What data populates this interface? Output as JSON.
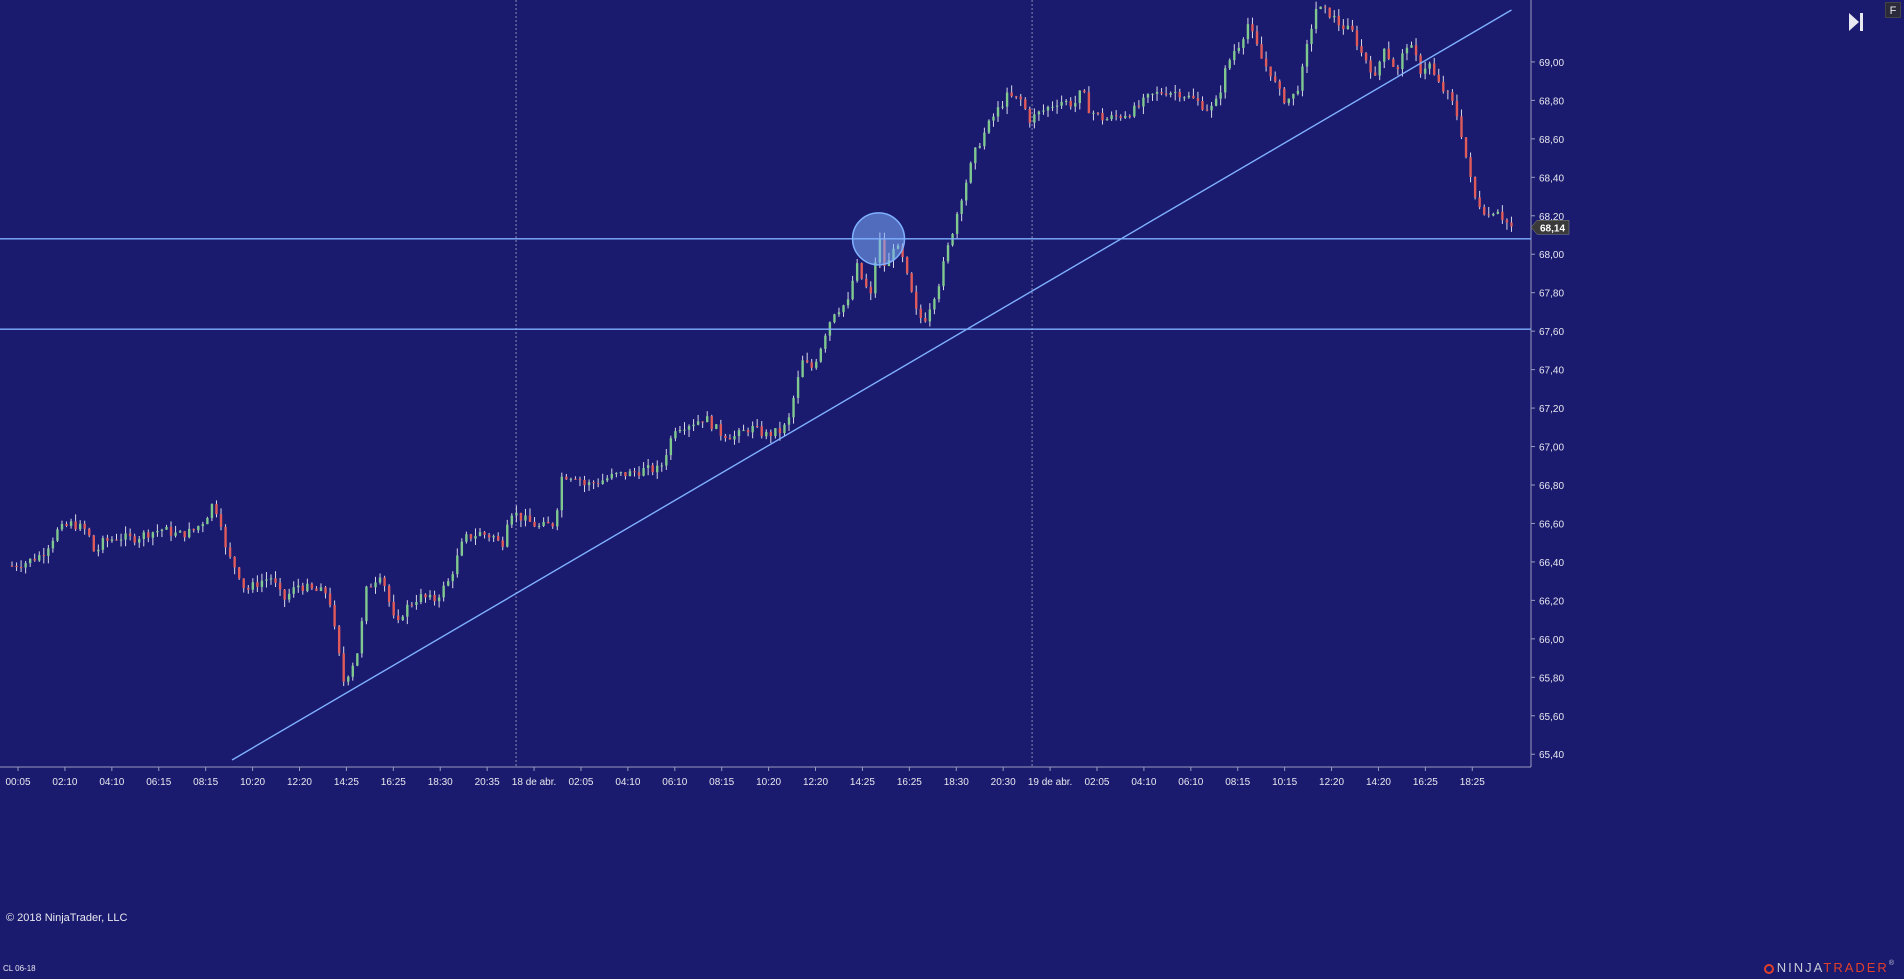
{
  "chart_data": {
    "type": "candlestick",
    "instrument": "CL 06-18",
    "x_tick_labels": [
      "00:05",
      "02:10",
      "04:10",
      "06:15",
      "08:15",
      "10:20",
      "12:20",
      "14:25",
      "16:25",
      "18:30",
      "20:35",
      "18 de abr.",
      "02:05",
      "04:10",
      "06:10",
      "08:15",
      "10:20",
      "12:20",
      "14:25",
      "16:25",
      "18:30",
      "20:30",
      "19 de abr.",
      "02:05",
      "04:10",
      "06:10",
      "08:15",
      "10:15",
      "12:20",
      "14:20",
      "16:25",
      "18:25"
    ],
    "y_tick_labels": [
      "69,00",
      "68,80",
      "68,60",
      "68,40",
      "68,20",
      "68,00",
      "67,80",
      "67,60",
      "67,40",
      "67,20",
      "67,00",
      "66,80",
      "66,60",
      "66,40",
      "66,20",
      "66,00",
      "65,80",
      "65,60",
      "65,40"
    ],
    "y_range": [
      65.37,
      69.27
    ],
    "last_price": 68.14,
    "last_price_label": "68,14",
    "horizontal_lines": [
      68.08,
      67.61
    ],
    "trend_line": {
      "start": {
        "x_index": 0.146,
        "y": 65.37
      },
      "end": {
        "x_index": 0.995,
        "y": 69.27
      }
    },
    "highlight_circle": {
      "x_index": 0.575,
      "y": 68.08
    },
    "session_separators": [
      "18 de abr.",
      "19 de abr."
    ],
    "price_path": [
      [
        0.0,
        66.38
      ],
      [
        0.01,
        66.4
      ],
      [
        0.02,
        66.44
      ],
      [
        0.03,
        66.56
      ],
      [
        0.04,
        66.6
      ],
      [
        0.05,
        66.56
      ],
      [
        0.055,
        66.44
      ],
      [
        0.06,
        66.5
      ],
      [
        0.07,
        66.53
      ],
      [
        0.08,
        66.52
      ],
      [
        0.09,
        66.55
      ],
      [
        0.1,
        66.57
      ],
      [
        0.11,
        66.54
      ],
      [
        0.12,
        66.56
      ],
      [
        0.128,
        66.62
      ],
      [
        0.133,
        66.7
      ],
      [
        0.138,
        66.64
      ],
      [
        0.142,
        66.45
      ],
      [
        0.15,
        66.35
      ],
      [
        0.155,
        66.25
      ],
      [
        0.165,
        66.3
      ],
      [
        0.172,
        66.32
      ],
      [
        0.18,
        66.2
      ],
      [
        0.19,
        66.28
      ],
      [
        0.2,
        66.25
      ],
      [
        0.21,
        66.24
      ],
      [
        0.215,
        66.0
      ],
      [
        0.22,
        65.78
      ],
      [
        0.225,
        65.85
      ],
      [
        0.23,
        65.95
      ],
      [
        0.235,
        66.25
      ],
      [
        0.245,
        66.35
      ],
      [
        0.25,
        66.2
      ],
      [
        0.255,
        66.05
      ],
      [
        0.26,
        66.15
      ],
      [
        0.27,
        66.22
      ],
      [
        0.28,
        66.2
      ],
      [
        0.29,
        66.3
      ],
      [
        0.3,
        66.52
      ],
      [
        0.31,
        66.55
      ],
      [
        0.32,
        66.53
      ],
      [
        0.325,
        66.48
      ],
      [
        0.33,
        66.67
      ],
      [
        0.34,
        66.62
      ],
      [
        0.35,
        66.58
      ],
      [
        0.36,
        66.6
      ],
      [
        0.365,
        66.85
      ],
      [
        0.375,
        66.85
      ],
      [
        0.38,
        66.8
      ],
      [
        0.39,
        66.82
      ],
      [
        0.4,
        66.85
      ],
      [
        0.41,
        66.86
      ],
      [
        0.42,
        66.88
      ],
      [
        0.43,
        66.88
      ],
      [
        0.44,
        67.1
      ],
      [
        0.45,
        67.12
      ],
      [
        0.46,
        67.15
      ],
      [
        0.47,
        67.07
      ],
      [
        0.48,
        67.05
      ],
      [
        0.49,
        67.1
      ],
      [
        0.5,
        67.06
      ],
      [
        0.51,
        67.08
      ],
      [
        0.515,
        67.12
      ],
      [
        0.52,
        67.3
      ],
      [
        0.525,
        67.45
      ],
      [
        0.53,
        67.4
      ],
      [
        0.535,
        67.48
      ],
      [
        0.54,
        67.6
      ],
      [
        0.545,
        67.7
      ],
      [
        0.555,
        67.75
      ],
      [
        0.56,
        67.95
      ],
      [
        0.565,
        67.85
      ],
      [
        0.57,
        67.78
      ],
      [
        0.575,
        68.1
      ],
      [
        0.58,
        67.9
      ],
      [
        0.585,
        68.05
      ],
      [
        0.59,
        68.0
      ],
      [
        0.595,
        67.85
      ],
      [
        0.6,
        67.7
      ],
      [
        0.605,
        67.65
      ],
      [
        0.61,
        67.75
      ],
      [
        0.615,
        67.85
      ],
      [
        0.62,
        68.0
      ],
      [
        0.63,
        68.3
      ],
      [
        0.64,
        68.55
      ],
      [
        0.65,
        68.7
      ],
      [
        0.66,
        68.82
      ],
      [
        0.67,
        68.8
      ],
      [
        0.675,
        68.7
      ],
      [
        0.685,
        68.75
      ],
      [
        0.695,
        68.8
      ],
      [
        0.705,
        68.78
      ],
      [
        0.71,
        68.85
      ],
      [
        0.715,
        68.75
      ],
      [
        0.725,
        68.7
      ],
      [
        0.735,
        68.72
      ],
      [
        0.745,
        68.75
      ],
      [
        0.755,
        68.82
      ],
      [
        0.765,
        68.85
      ],
      [
        0.775,
        68.84
      ],
      [
        0.785,
        68.8
      ],
      [
        0.795,
        68.75
      ],
      [
        0.8,
        68.8
      ],
      [
        0.805,
        68.95
      ],
      [
        0.81,
        69.05
      ],
      [
        0.815,
        69.1
      ],
      [
        0.82,
        69.2
      ],
      [
        0.825,
        69.1
      ],
      [
        0.83,
        69.0
      ],
      [
        0.835,
        68.95
      ],
      [
        0.84,
        68.85
      ],
      [
        0.845,
        68.8
      ],
      [
        0.85,
        68.82
      ],
      [
        0.855,
        68.9
      ],
      [
        0.86,
        69.1
      ],
      [
        0.865,
        69.28
      ],
      [
        0.875,
        69.25
      ],
      [
        0.88,
        69.2
      ],
      [
        0.89,
        69.15
      ],
      [
        0.895,
        69.05
      ],
      [
        0.9,
        69.0
      ],
      [
        0.905,
        68.9
      ],
      [
        0.91,
        69.1
      ],
      [
        0.915,
        69.0
      ],
      [
        0.92,
        68.95
      ],
      [
        0.925,
        69.1
      ],
      [
        0.93,
        69.05
      ],
      [
        0.935,
        68.95
      ],
      [
        0.94,
        69.0
      ],
      [
        0.945,
        68.9
      ],
      [
        0.95,
        68.85
      ],
      [
        0.955,
        68.8
      ],
      [
        0.96,
        68.7
      ],
      [
        0.965,
        68.5
      ],
      [
        0.97,
        68.3
      ],
      [
        0.975,
        68.25
      ],
      [
        0.98,
        68.2
      ],
      [
        0.985,
        68.25
      ],
      [
        0.99,
        68.18
      ],
      [
        0.995,
        68.14
      ]
    ]
  },
  "footer": {
    "copyright": "© 2018 NinjaTrader, LLC",
    "instrument_label": "CL 06-18",
    "logo_ninja": "NINJA",
    "logo_trader": "TRADER",
    "logo_reg": "®"
  },
  "toolbar": {
    "f_label": "F"
  },
  "colors": {
    "background": "#1a1a6e",
    "axis_panel": "#1a1a6e",
    "text": "#e8e8f0",
    "up_candle": "#7fc88f",
    "down_candle": "#e05a5a",
    "wick": "#d8d8e8",
    "drawing_line": "#7fb0ff",
    "separator": "#8a8ab0",
    "price_marker_bg": "#3a3a3a"
  }
}
